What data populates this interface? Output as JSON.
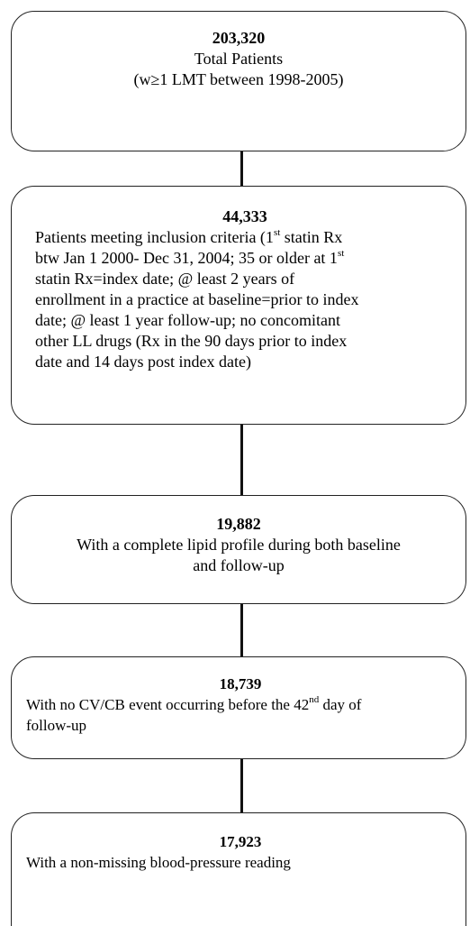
{
  "nodes": [
    {
      "count": "203,320",
      "lines": [
        [
          {
            "text": "Total Patients"
          }
        ],
        [
          {
            "text": "(w≥1 LMT between 1998-2005)"
          }
        ]
      ]
    },
    {
      "count": "44,333",
      "lines": [
        [
          {
            "text": "Patients meeting inclusion criteria (1"
          },
          {
            "sup": "st"
          },
          {
            "text": " statin Rx"
          }
        ],
        [
          {
            "text": "btw Jan 1 2000- Dec 31, 2004; 35 or older at 1"
          },
          {
            "sup": "st"
          }
        ],
        [
          {
            "text": "statin Rx=index date; @ least 2 years of"
          }
        ],
        [
          {
            "text": "enrollment in a practice at baseline=prior to index"
          }
        ],
        [
          {
            "text": "date; @ least 1 year follow-up; no concomitant"
          }
        ],
        [
          {
            "text": "other LL drugs (Rx in the 90 days prior to index"
          }
        ],
        [
          {
            "text": "date and 14 days post index date)"
          }
        ]
      ]
    },
    {
      "count": "19,882",
      "lines": [
        [
          {
            "text": "With a complete lipid profile during both baseline"
          }
        ],
        [
          {
            "text": "and follow-up"
          }
        ]
      ]
    },
    {
      "count": "18,739",
      "lines": [
        [
          {
            "text": "With no CV/CB event occurring before the 42"
          },
          {
            "sup": "nd"
          },
          {
            "text": " day of"
          }
        ],
        [
          {
            "text": "follow-up"
          }
        ]
      ]
    },
    {
      "count": "17,923",
      "lines": [
        [
          {
            "text": "With a non-missing blood-pressure reading"
          }
        ]
      ]
    }
  ]
}
